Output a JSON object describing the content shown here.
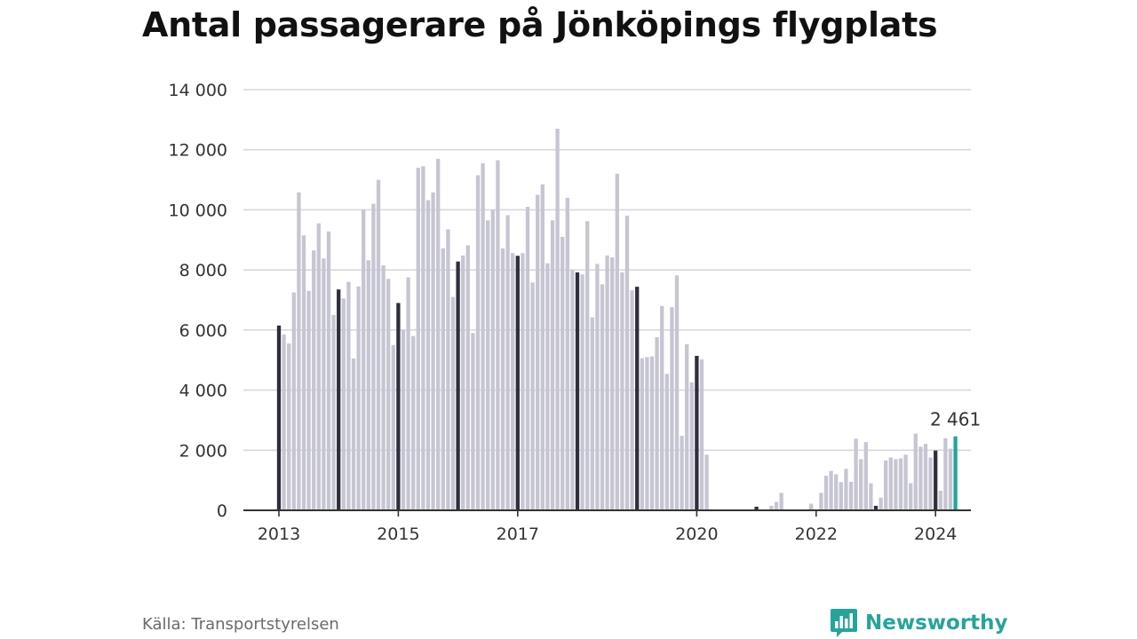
{
  "chart_data": {
    "type": "bar",
    "title": "Antal passagerare på Jönköpings flygplats",
    "xlabel": "",
    "ylabel": "",
    "ylim": [
      0,
      14000
    ],
    "yticks": [
      0,
      2000,
      4000,
      6000,
      8000,
      10000,
      12000,
      14000
    ],
    "ytick_labels": [
      "0",
      "2 000",
      "4 000",
      "6 000",
      "8 000",
      "10 000",
      "12 000",
      "14 000"
    ],
    "xtick_labels": [
      {
        "label": "2013",
        "index": 0
      },
      {
        "label": "2015",
        "index": 24
      },
      {
        "label": "2017",
        "index": 48
      },
      {
        "label": "2020",
        "index": 84
      },
      {
        "label": "2022",
        "index": 108
      },
      {
        "label": "2024",
        "index": 132
      }
    ],
    "grid": true,
    "legend": "none",
    "start_month": "2013-01",
    "values": [
      6150,
      5850,
      5550,
      7250,
      10580,
      9150,
      7300,
      8650,
      9550,
      8380,
      9280,
      6500,
      7350,
      7050,
      7600,
      5050,
      7450,
      10000,
      8320,
      10200,
      11000,
      8150,
      7700,
      5500,
      6900,
      6000,
      7750,
      5800,
      11400,
      11450,
      10320,
      10580,
      11700,
      8720,
      9350,
      7100,
      8280,
      8480,
      8820,
      5900,
      11150,
      11550,
      9650,
      10000,
      11650,
      8720,
      9820,
      8560,
      8470,
      8560,
      10100,
      7580,
      10500,
      10850,
      8220,
      9650,
      12700,
      9100,
      10400,
      8000,
      7920,
      7850,
      9620,
      6420,
      8200,
      7520,
      8480,
      8420,
      11200,
      7920,
      9800,
      7320,
      7440,
      5060,
      5100,
      5120,
      5760,
      6800,
      4540,
      6760,
      7820,
      2480,
      5530,
      4260,
      5140,
      5020,
      1850,
      0,
      0,
      0,
      0,
      0,
      0,
      0,
      0,
      0,
      120,
      0,
      0,
      150,
      280,
      580,
      0,
      0,
      0,
      0,
      0,
      220,
      0,
      580,
      1150,
      1310,
      1200,
      940,
      1380,
      950,
      2380,
      1700,
      2270,
      900,
      150,
      420,
      1660,
      1760,
      1700,
      1730,
      1850,
      900,
      2550,
      2120,
      2210,
      1760,
      1990,
      650,
      2400,
      2050,
      2461
    ],
    "january_color": "#2e2e3c",
    "bar_color": "#c6c5d2",
    "latest_color": "#22a59b",
    "latest_label": "2 461"
  },
  "footer": {
    "source": "Källa: Transportstyrelsen",
    "brand": "Newsworthy"
  },
  "colors": {
    "brand": "#27a49a",
    "grid": "#d9d9dd",
    "axis": "#333333"
  }
}
